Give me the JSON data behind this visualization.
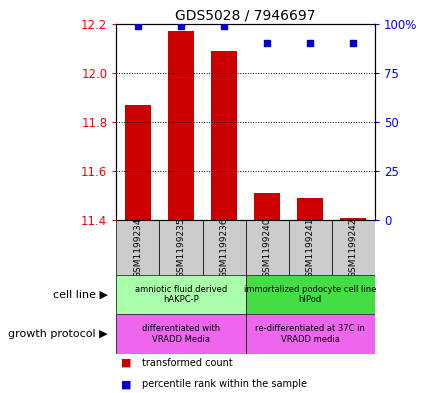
{
  "title": "GDS5028 / 7946697",
  "samples": [
    "GSM1199234",
    "GSM1199235",
    "GSM1199236",
    "GSM1199240",
    "GSM1199241",
    "GSM1199242"
  ],
  "bar_values": [
    11.87,
    12.17,
    12.09,
    11.51,
    11.49,
    11.41
  ],
  "percentile_values": [
    99,
    99,
    99,
    90,
    90,
    90
  ],
  "ylim_left": [
    11.4,
    12.2
  ],
  "ylim_right": [
    0,
    100
  ],
  "left_ticks": [
    11.4,
    11.6,
    11.8,
    12.0,
    12.2
  ],
  "right_ticks": [
    0,
    25,
    50,
    75,
    100
  ],
  "right_tick_labels": [
    "0",
    "25",
    "50",
    "75",
    "100%"
  ],
  "bar_color": "#cc0000",
  "dot_color": "#0000cc",
  "bar_bottom": 11.4,
  "cell_line_labels": [
    "amniotic fluid derived\nhAKPC-P",
    "immortalized podocyte cell line\nhIPod"
  ],
  "cell_line_colors": [
    "#aaffaa",
    "#44dd44"
  ],
  "growth_protocol_labels": [
    "differentiated with\nVRADD Media",
    "re-differentiated at 37C in\nVRADD media"
  ],
  "growth_protocol_color": "#ee66ee",
  "group1_indices": [
    0,
    1,
    2
  ],
  "group2_indices": [
    3,
    4,
    5
  ],
  "legend_red_label": "transformed count",
  "legend_blue_label": "percentile rank within the sample",
  "xlabel_cell_line": "cell line",
  "xlabel_growth": "growth protocol",
  "tick_bg_color": "#cccccc",
  "bar_width": 0.6
}
